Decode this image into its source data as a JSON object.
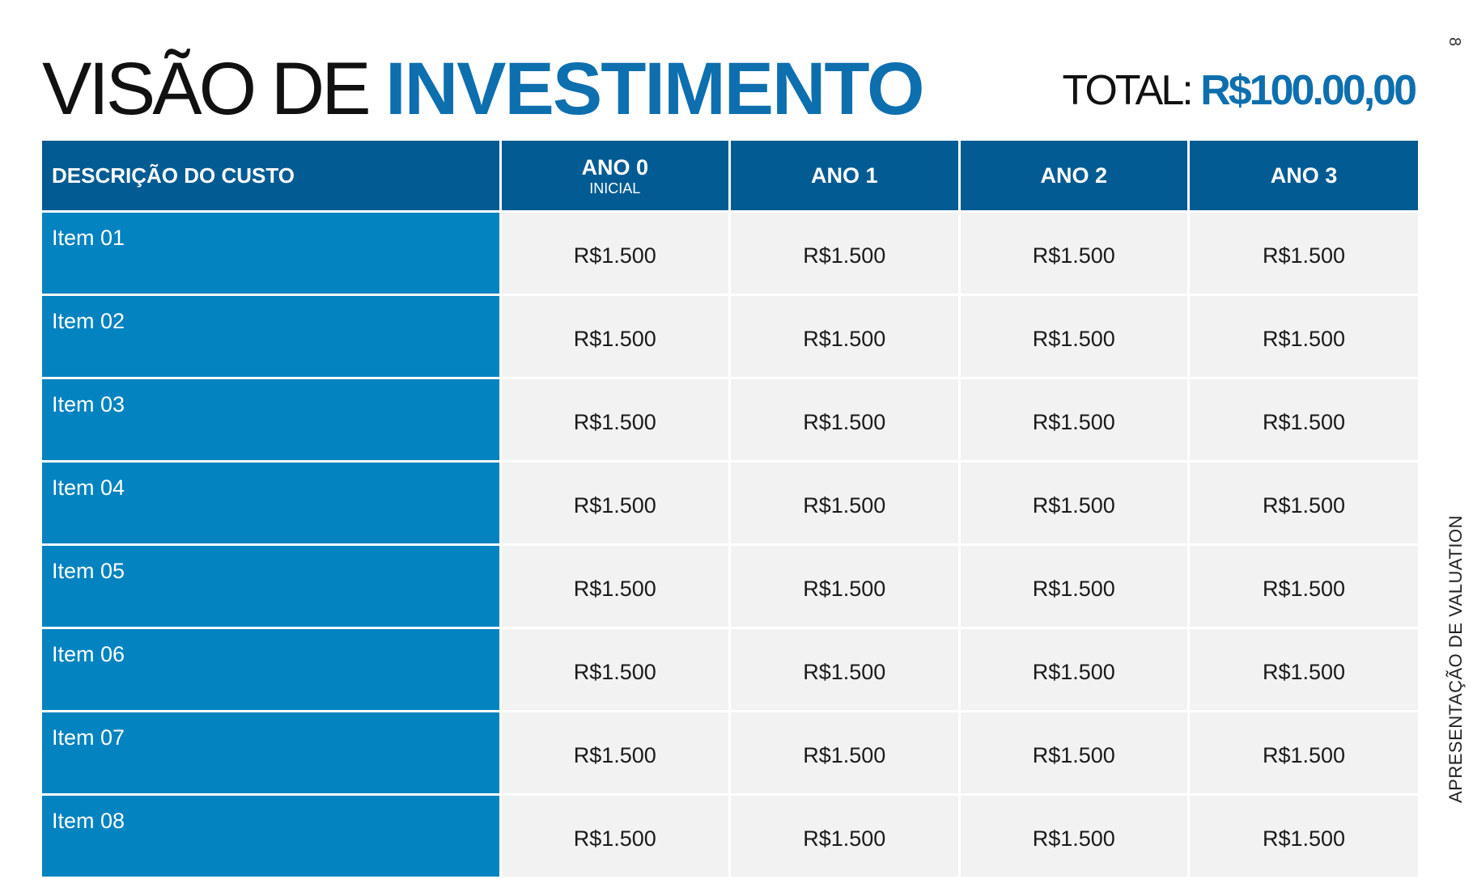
{
  "header": {
    "title_plain": "VISÃO DE",
    "title_accent": "INVESTIMENTO",
    "total_label": "TOTAL:",
    "total_value": "R$100.00,00"
  },
  "page_number": "8",
  "side_label": "APRESENTAÇÃO DE VALUATION",
  "table": {
    "header_desc": "DESCRIÇÃO DO CUSTO",
    "years": [
      {
        "label": "ANO 0",
        "sub": "INICIAL"
      },
      {
        "label": "ANO 1",
        "sub": ""
      },
      {
        "label": "ANO 2",
        "sub": ""
      },
      {
        "label": "ANO 3",
        "sub": ""
      }
    ],
    "rows": [
      {
        "item": "Item 01",
        "values": [
          "R$1.500",
          "R$1.500",
          "R$1.500",
          "R$1.500"
        ]
      },
      {
        "item": "Item 02",
        "values": [
          "R$1.500",
          "R$1.500",
          "R$1.500",
          "R$1.500"
        ]
      },
      {
        "item": "Item 03",
        "values": [
          "R$1.500",
          "R$1.500",
          "R$1.500",
          "R$1.500"
        ]
      },
      {
        "item": "Item 04",
        "values": [
          "R$1.500",
          "R$1.500",
          "R$1.500",
          "R$1.500"
        ]
      },
      {
        "item": "Item 05",
        "values": [
          "R$1.500",
          "R$1.500",
          "R$1.500",
          "R$1.500"
        ]
      },
      {
        "item": "Item 06",
        "values": [
          "R$1.500",
          "R$1.500",
          "R$1.500",
          "R$1.500"
        ]
      },
      {
        "item": "Item 07",
        "values": [
          "R$1.500",
          "R$1.500",
          "R$1.500",
          "R$1.500"
        ]
      },
      {
        "item": "Item 08",
        "values": [
          "R$1.500",
          "R$1.500",
          "R$1.500",
          "R$1.500"
        ]
      }
    ]
  },
  "colors": {
    "accent": "#0e6fae",
    "header_bg": "#025b92",
    "desc_bg": "#0383c0",
    "cell_bg": "#f2f2f2"
  }
}
